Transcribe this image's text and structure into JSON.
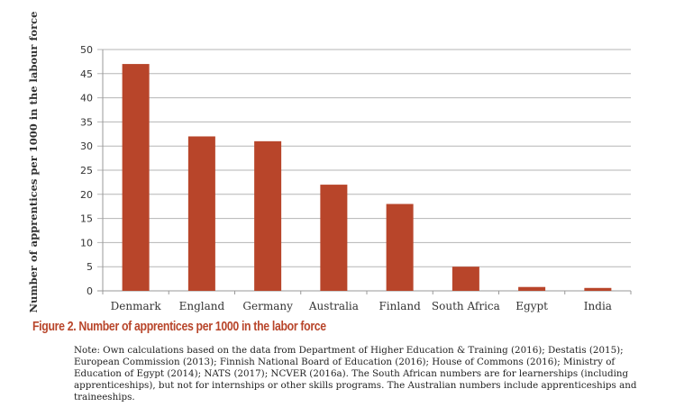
{
  "chart_data": {
    "type": "bar",
    "title": "Figure 2. Number of apprentices per 1000 in the labor force",
    "xlabel": "",
    "ylabel": "Number of apprentices per 1000 in the labour force",
    "categories": [
      "Denmark",
      "England",
      "Germany",
      "Australia",
      "Finland",
      "South Africa",
      "Egypt",
      "India"
    ],
    "values": [
      47,
      32,
      31,
      22,
      18,
      5,
      0.8,
      0.6
    ],
    "ylim": [
      0,
      50
    ],
    "yticks": [
      0,
      5,
      10,
      15,
      20,
      25,
      30,
      35,
      40,
      45,
      50
    ],
    "grid": true,
    "bar_color": "#b8452a"
  },
  "note": "Note: Own calculations based on the data from Department of Higher Education & Training (2016); Destatis (2015); European Commission (2013); Finnish National Board of Education (2016); House of Commons (2016); Ministry of Education of Egypt (2014); NATS (2017); NCVER (2016a). The South African numbers are for learnerships (including apprenticeships), but not for internships or other skills programs. The Australian numbers include apprenticeships and traineeships."
}
